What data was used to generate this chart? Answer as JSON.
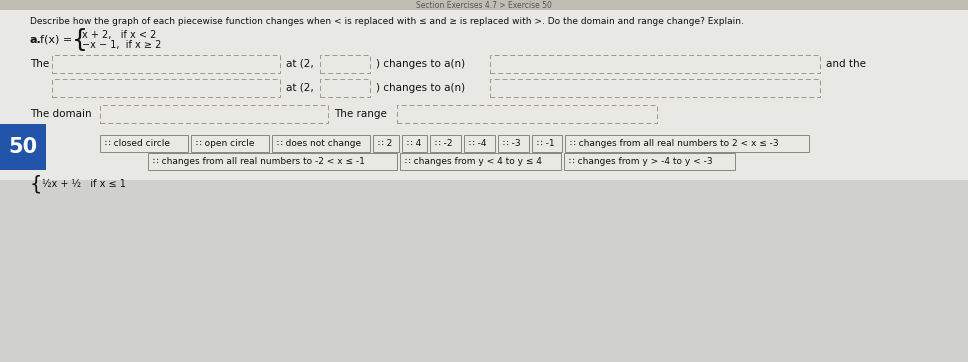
{
  "title": "Describe how the graph of each piecewise function changes when < is replaced with ≤ and ≥ is replaced with >. Do the domain and range change? Explain.",
  "prob_label": "a.",
  "func_line1": "x + 2,   if x < 2",
  "func_line2": "−x − 1,  if x ≥ 2",
  "bg_top": "#e8e8e4",
  "bg_bottom": "#d0d0cc",
  "section_bg": "#2255aa",
  "section_text": "#ffffff",
  "section_num": "50",
  "text_color": "#111111",
  "box_edge": "#aaa090",
  "chip_edge": "#888880",
  "chips_row1": [
    "∷ closed circle",
    "∷ open circle",
    "∷ does not change",
    "∷ 2",
    "∷ 4",
    "∷ -2",
    "∷ -4",
    "∷ -3",
    "∷ -1",
    "∷ changes from all real numbers to 2 < x ≤ -3"
  ],
  "chips_row2": [
    "∷ changes from all real numbers to -2 < x ≤ -1",
    "∷ changes from y < 4 to y ≤ 4",
    "∷ changes from y > -4 to y < -3"
  ]
}
